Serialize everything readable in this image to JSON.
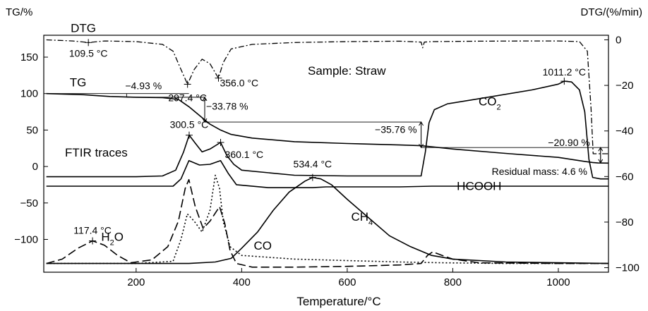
{
  "chart_data": {
    "type": "line",
    "title": "",
    "left_axis_label": "TG/%",
    "right_axis_label": "DTG/(%/min)",
    "xlabel": "Temperature/°C",
    "sample_label": "Sample: Straw",
    "ftir_label": "FTIR traces",
    "residual_label": "Residual mass: 4.6 %",
    "xlim": [
      25,
      1095
    ],
    "ylim_left": [
      -145,
      180
    ],
    "ylim_right": [
      -102,
      2
    ],
    "x_ticks": [
      200,
      400,
      600,
      800,
      1000
    ],
    "y_ticks_left": [
      150,
      100,
      50,
      0,
      -50,
      -100
    ],
    "y_ticks_right": [
      0,
      -20,
      -40,
      -60,
      -80,
      -100
    ],
    "grid": false,
    "series": [
      {
        "name": "DTG",
        "axis": "right",
        "style": "dashdot",
        "x": [
          30,
          80,
          110,
          140,
          200,
          250,
          270,
          285,
          297.4,
          310,
          325,
          340,
          350,
          356,
          365,
          380,
          420,
          500,
          600,
          700,
          740,
          743,
          746,
          760,
          850,
          950,
          1000,
          1040,
          1055,
          1062,
          1066,
          1080,
          1095
        ],
        "y": [
          0,
          -0.5,
          -1.2,
          -0.5,
          -0.8,
          -2,
          -5,
          -13,
          -19.5,
          -13,
          -8.5,
          -10.5,
          -14.5,
          -16.8,
          -10,
          -4,
          -2,
          -1.2,
          -0.8,
          -0.6,
          -1,
          -3.5,
          -1,
          -0.8,
          -0.6,
          -0.5,
          -0.5,
          -0.8,
          -5,
          -30,
          -50,
          -50,
          -50
        ]
      },
      {
        "name": "TG",
        "axis": "left",
        "style": "solid",
        "x": [
          30,
          100,
          150,
          200,
          250,
          280,
          300,
          320,
          340,
          360,
          380,
          420,
          500,
          600,
          700,
          740,
          800,
          900,
          1000,
          1050,
          1065,
          1075,
          1095
        ],
        "y": [
          100,
          98.5,
          96,
          95,
          94.5,
          92,
          82,
          70,
          58,
          50,
          44,
          39,
          34,
          31.5,
          29.5,
          28.5,
          24,
          18,
          12.5,
          7,
          5.5,
          4.8,
          4.6
        ]
      },
      {
        "name": "CO2",
        "axis": "left",
        "style": "solid",
        "x": [
          30,
          100,
          200,
          250,
          275,
          290,
          300.5,
          312,
          325,
          340,
          360.1,
          372,
          385,
          400,
          500,
          600,
          700,
          740,
          748,
          755,
          765,
          790,
          850,
          950,
          1000,
          1011.2,
          1025,
          1040,
          1050,
          1058,
          1065,
          1080,
          1095
        ],
        "y": [
          -14,
          -14,
          -14,
          -13,
          -5,
          20,
          43,
          32,
          20,
          24,
          33,
          15,
          3,
          -5,
          -12,
          -13,
          -13,
          -13,
          20,
          60,
          78,
          86,
          93,
          105,
          113,
          117,
          116,
          105,
          75,
          10,
          -15,
          -17,
          -17
        ]
      },
      {
        "name": "HCOOH",
        "axis": "left",
        "style": "solid",
        "x": [
          30,
          200,
          270,
          285,
          300,
          320,
          340,
          360,
          375,
          390,
          450,
          534.4,
          560,
          600,
          700,
          760,
          860,
          1000,
          1095
        ],
        "y": [
          -27,
          -27,
          -27,
          -17,
          8,
          2,
          3,
          8,
          -10,
          -25,
          -29,
          -29,
          -28,
          -28,
          -28,
          -27,
          -27,
          -27,
          -27
        ]
      },
      {
        "name": "CH4",
        "axis": "left",
        "style": "solid",
        "x": [
          30,
          200,
          300,
          350,
          380,
          400,
          430,
          460,
          490,
          520,
          534.4,
          550,
          570,
          600,
          640,
          680,
          720,
          760,
          800,
          900,
          1000,
          1095
        ],
        "y": [
          -133,
          -133,
          -133,
          -131,
          -126,
          -112,
          -90,
          -60,
          -35,
          -20,
          -15,
          -17,
          -25,
          -45,
          -70,
          -95,
          -110,
          -122,
          -127,
          -131,
          -132,
          -133
        ]
      },
      {
        "name": "H2O",
        "axis": "left",
        "style": "dashed",
        "x": [
          30,
          60,
          90,
          117.4,
          140,
          165,
          190,
          230,
          260,
          280,
          293,
          300,
          312,
          327,
          340,
          358,
          368,
          378,
          390,
          420,
          500,
          600,
          700,
          740,
          752,
          762,
          780,
          800,
          850,
          1000,
          1095
        ],
        "y": [
          -133,
          -127,
          -112,
          -102,
          -108,
          -122,
          -132,
          -128,
          -110,
          -75,
          -30,
          -18,
          -55,
          -85,
          -75,
          -55,
          -78,
          -115,
          -133,
          -138,
          -138,
          -137,
          -135,
          -133,
          -122,
          -117,
          -122,
          -127,
          -132,
          -133,
          -133
        ]
      },
      {
        "name": "CO",
        "axis": "left",
        "style": "dotted",
        "x": [
          30,
          200,
          270,
          285,
          297,
          310,
          325,
          340,
          350,
          358,
          365,
          378,
          400,
          500,
          600,
          700,
          780,
          900,
          1095
        ],
        "y": [
          -133,
          -133,
          -130,
          -100,
          -65,
          -75,
          -90,
          -60,
          -12,
          -30,
          -75,
          -110,
          -122,
          -127,
          -129,
          -131,
          -132,
          -133,
          -133
        ]
      }
    ],
    "annotations": [
      {
        "text": "DTG",
        "series": "DTG",
        "x": 100,
        "y": 1.5,
        "axis": "right"
      },
      {
        "text": "109.5 °C",
        "x": 109.5,
        "y": -1.2,
        "axis": "right"
      },
      {
        "text": "297.4 °C",
        "x": 297.4,
        "y": -19.5,
        "axis": "right"
      },
      {
        "text": "356.0 °C",
        "x": 356,
        "y": -16.8,
        "axis": "right"
      },
      {
        "text": "TG",
        "series": "TG",
        "x": 90,
        "y": 104,
        "axis": "left"
      },
      {
        "text": "−4.93 %",
        "x": 182,
        "y": 100,
        "axis": "left"
      },
      {
        "text": "−33.78 %",
        "x": 330,
        "y": 78,
        "axis": "left"
      },
      {
        "text": "−35.76 %",
        "x": 740,
        "y": 46,
        "axis": "left"
      },
      {
        "text": "−20.90 %",
        "x": 1060,
        "y": 26,
        "axis": "left"
      },
      {
        "text": "300.5 °C",
        "x": 300.5,
        "y": 43,
        "axis": "left"
      },
      {
        "text": "360.1 °C",
        "x": 360.1,
        "y": 33,
        "axis": "left"
      },
      {
        "text": "1011.2 °C",
        "x": 1011.2,
        "y": 117,
        "axis": "left"
      },
      {
        "text": "534.4 °C",
        "x": 534.4,
        "y": -15,
        "axis": "left"
      },
      {
        "text": "117.4 °C",
        "x": 117.4,
        "y": -102,
        "axis": "left"
      },
      {
        "text": "HCOOH",
        "series": "HCOOH",
        "x": 850,
        "y": -38,
        "axis": "left"
      },
      {
        "text": "CH",
        "sub": "4",
        "series": "CH4",
        "x": 628,
        "y": -80,
        "axis": "left"
      },
      {
        "text": "CO",
        "sub": "2",
        "series": "CO2",
        "x": 870,
        "y": 78,
        "axis": "left"
      },
      {
        "text": "H",
        "sub": "2",
        "tail": "O",
        "series": "H2O",
        "x": 155,
        "y": -108,
        "axis": "left"
      },
      {
        "text": "CO",
        "series": "CO",
        "x": 440,
        "y": -120,
        "axis": "left"
      }
    ]
  }
}
